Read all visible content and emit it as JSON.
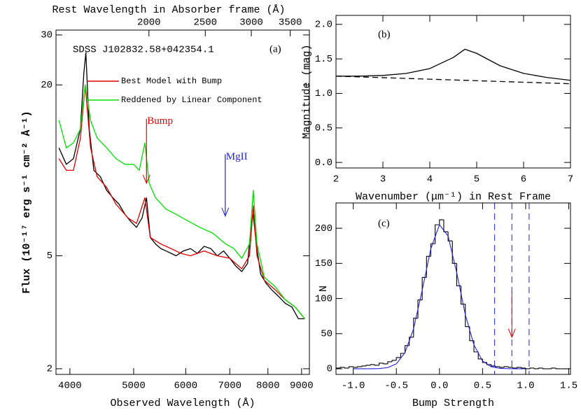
{
  "chart_data": [
    {
      "type": "line",
      "object_label": "SDSS J102832.58+042354.1",
      "panel_label": "(a)",
      "x_label": "Observed Wavelength (Å)",
      "x2_label": "Rest Wavelength in Absorber frame (Å)",
      "y_label": "Flux (10⁻¹⁷ erg s⁻¹ cm⁻² Å⁻¹)",
      "xlim": [
        3810,
        9250
      ],
      "xscale": "log",
      "xticks": [
        4000,
        5000,
        6000,
        7000,
        8000,
        9000
      ],
      "x2lim": [
        1384,
        3776
      ],
      "x2scale": "log",
      "x2ticks": [
        2000,
        2500,
        3000,
        3500
      ],
      "ylim": [
        1.91,
        31.2
      ],
      "yscale": "log",
      "yticks": [
        2,
        5,
        20,
        30
      ],
      "series": [
        {
          "color": "#000000",
          "x": [
            3850,
            3950,
            4050,
            4150,
            4200,
            4230,
            4280,
            4350,
            4450,
            4550,
            4650,
            4750,
            4850,
            4950,
            5050,
            5150,
            5230,
            5300,
            5400,
            5500,
            5600,
            5700,
            5800,
            5950,
            6100,
            6250,
            6400,
            6550,
            6700,
            6850,
            7000,
            7150,
            7300,
            7450,
            7550,
            7600,
            7680,
            7800,
            7950,
            8100,
            8300,
            8500,
            8700,
            8900,
            9100
          ],
          "values": [
            12,
            10.5,
            11,
            14,
            22,
            26,
            14,
            10,
            9.5,
            8.5,
            8,
            7.6,
            7,
            6.6,
            6.3,
            6.8,
            8,
            5.8,
            5.5,
            5.3,
            5.2,
            5.1,
            5.0,
            5.2,
            5.3,
            5.1,
            5.4,
            5.3,
            5.0,
            5.2,
            4.9,
            4.6,
            4.4,
            4.7,
            6.5,
            7,
            5.5,
            4.3,
            4.0,
            3.8,
            3.6,
            3.4,
            3.3,
            3.0,
            3.0
          ]
        },
        {
          "name": "Best Model with Bump",
          "color": "#e00000",
          "x": [
            3850,
            3950,
            4050,
            4150,
            4220,
            4300,
            4400,
            4550,
            4700,
            4900,
            5050,
            5200,
            5300,
            5500,
            5700,
            5900,
            6100,
            6400,
            6700,
            7000,
            7300,
            7500,
            7600,
            7700,
            7900,
            8200,
            8500,
            8800,
            9100
          ],
          "values": [
            11,
            10,
            10,
            13,
            20,
            12,
            9.5,
            8.7,
            7.6,
            6.8,
            6.5,
            8,
            5.8,
            5.5,
            5.3,
            5.1,
            5.0,
            5.2,
            5.0,
            4.9,
            4.5,
            5.0,
            7.5,
            5.0,
            4.1,
            3.8,
            3.5,
            3.3,
            3.0
          ]
        },
        {
          "name": "Reddened by Linear Component",
          "color": "#00e000",
          "x": [
            3850,
            3950,
            4050,
            4150,
            4220,
            4300,
            4400,
            4550,
            4700,
            4850,
            5000,
            5100,
            5200,
            5280,
            5400,
            5600,
            5800,
            6000,
            6300,
            6600,
            6900,
            7100,
            7300,
            7500,
            7600,
            7700,
            7900,
            8200,
            8500,
            8800,
            9100
          ],
          "values": [
            15,
            12,
            12.5,
            14,
            20,
            15,
            13,
            12,
            11,
            10.5,
            10.5,
            10,
            12.5,
            9,
            8,
            7.3,
            7,
            6.7,
            6.3,
            6.0,
            5.5,
            5.3,
            4.9,
            5.5,
            8.5,
            5.5,
            4.2,
            3.9,
            3.5,
            3.3,
            3.0
          ]
        }
      ],
      "markers": [
        {
          "label": "Bump",
          "color": "#e00000",
          "x": 5230,
          "y": [
            15.2,
            9.0
          ]
        },
        {
          "label": "MgII",
          "color": "#2020e0",
          "x": 6890,
          "y": [
            11.4,
            6.9
          ]
        }
      ]
    },
    {
      "type": "line",
      "panel_label": "(b)",
      "x_label": "Wavenumber (μm⁻¹) in Rest Frame",
      "y_label": "Magnitude (mag)",
      "xlim": [
        2,
        7
      ],
      "xticks": [
        2,
        3,
        4,
        5,
        6,
        7
      ],
      "ylim": [
        -0.08,
        2.13
      ],
      "yticks": [
        {
          "value": 0,
          "label": "0.0"
        },
        {
          "value": 0.5,
          "label": "0.5"
        },
        {
          "value": 1,
          "label": "1.0"
        },
        {
          "value": 1.5,
          "label": "1.5"
        },
        {
          "value": 2,
          "label": "2.0"
        }
      ],
      "series": [
        {
          "color": "#000000",
          "linestyle": "solid",
          "x": [
            2,
            2.5,
            3,
            3.5,
            4,
            4.5,
            4.75,
            5,
            5.5,
            6,
            6.5,
            7
          ],
          "values": [
            1.25,
            1.25,
            1.26,
            1.29,
            1.36,
            1.52,
            1.64,
            1.58,
            1.4,
            1.29,
            1.23,
            1.19
          ]
        },
        {
          "color": "#000000",
          "linestyle": "dashed",
          "x": [
            2,
            7
          ],
          "values": [
            1.25,
            1.14
          ]
        }
      ]
    },
    {
      "type": "histogram",
      "panel_label": "(c)",
      "x_label": "Bump Strength",
      "y_label": "N",
      "color": "#000000",
      "bins": [
        -1.2,
        -1.15,
        -1.1,
        -1.05,
        -1.0,
        -0.95,
        -0.9,
        -0.85,
        -0.8,
        -0.75,
        -0.7,
        -0.65,
        -0.6,
        -0.55,
        -0.5,
        -0.45,
        -0.4,
        -0.35,
        -0.3,
        -0.25,
        -0.2,
        -0.15,
        -0.1,
        -0.05,
        0,
        0.05,
        0.1,
        0.15,
        0.2,
        0.25,
        0.3,
        0.35,
        0.4,
        0.45,
        0.5,
        0.55,
        0.6,
        0.65,
        0.7,
        0.75,
        0.8,
        0.85,
        0.9,
        0.95,
        1.0,
        1.05,
        1.1,
        1.15,
        1.2,
        1.25,
        1.3,
        1.35,
        1.4,
        1.45,
        1.5
      ],
      "values": [
        1,
        2,
        1,
        3,
        2,
        3,
        4,
        5,
        6,
        5,
        8,
        7,
        10,
        12,
        16,
        22,
        33,
        45,
        72,
        98,
        130,
        160,
        178,
        205,
        212,
        195,
        182,
        150,
        118,
        92,
        60,
        40,
        24,
        14,
        9,
        6,
        4,
        3,
        2,
        3,
        2,
        1,
        2,
        1,
        0,
        1,
        0,
        1,
        0,
        0,
        1,
        0,
        0,
        0
      ],
      "fit": {
        "color": "#2020e0",
        "x": [
          -1.0,
          -0.9,
          -0.8,
          -0.7,
          -0.6,
          -0.5,
          -0.4,
          -0.3,
          -0.2,
          -0.1,
          0,
          0.1,
          0.2,
          0.3,
          0.4,
          0.5,
          0.6,
          0.7,
          0.8,
          0.9,
          1.0
        ],
        "values": [
          0,
          0,
          0,
          0.3,
          1.7,
          7,
          23,
          57,
          112,
          171,
          205,
          189,
          137,
          77,
          34,
          11,
          3,
          0.6,
          0.1,
          0,
          0
        ]
      },
      "vlines": {
        "color": "#2020e0",
        "x": [
          0.64,
          0.84,
          1.04
        ]
      },
      "arrow": {
        "color": "#e00000",
        "x": 0.84,
        "y": [
          110,
          45
        ]
      },
      "xlim": [
        -1.2,
        1.52
      ],
      "xticks": [
        {
          "value": -1,
          "label": "-1.0"
        },
        {
          "value": -0.5,
          "label": "-0.5"
        },
        {
          "value": 0,
          "label": "0.0"
        },
        {
          "value": 0.5,
          "label": "0.5"
        },
        {
          "value": 1,
          "label": "1.0"
        },
        {
          "value": 1.5,
          "label": "1.5"
        }
      ],
      "ylim": [
        -8,
        236
      ],
      "yticks": [
        0,
        50,
        100,
        150,
        200
      ]
    }
  ]
}
